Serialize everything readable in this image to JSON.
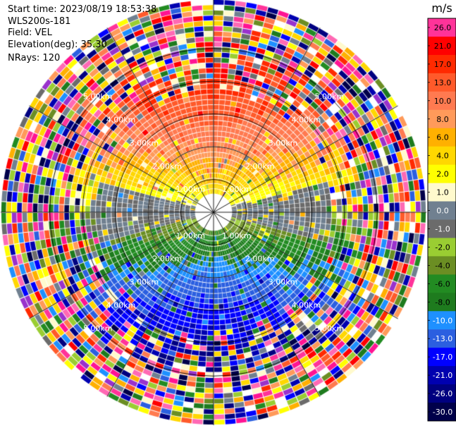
{
  "header": {
    "start_time": "Start time: 2023/08/19 18:53:38",
    "instrument": "WLS200s-181",
    "field": "Field: VEL",
    "elevation": "Elevation(deg): 35.30",
    "nrays": "NRays: 120"
  },
  "chart_data": {
    "type": "heatmap",
    "projection": "polar-ppi",
    "field": "VEL",
    "n_rays": 120,
    "max_range_km": 6.5,
    "range_rings_km": [
      1,
      2,
      3,
      4,
      5
    ],
    "range_ring_labels": [
      "1.00km",
      "2.00km",
      "3.00km",
      "4.00km",
      "5.00km"
    ],
    "colorbar": {
      "unit": "m/s",
      "ticks": [
        "26.0",
        "21.0",
        "17.0",
        "13.0",
        "10.0",
        "8.0",
        "6.0",
        "4.0",
        "2.0",
        "1.0",
        "0.0",
        "-1.0",
        "-2.0",
        "-4.0",
        "-6.0",
        "-8.0",
        "-10.0",
        "-13.0",
        "-17.0",
        "-21.0",
        "-26.0",
        "-30.0"
      ],
      "colors": [
        "#ff3399",
        "#ff0000",
        "#ff2a00",
        "#ff5a2a",
        "#ff7a50",
        "#ff9a5a",
        "#ffb000",
        "#ffd700",
        "#ffff00",
        "#fffacd",
        "#708090",
        "#6b6b6b",
        "#9acd32",
        "#6b8e23",
        "#228b22",
        "#1e7b1e",
        "#1e90ff",
        "#2b5fe0",
        "#0000ff",
        "#0000b0",
        "#000080",
        "#00004a"
      ]
    }
  }
}
